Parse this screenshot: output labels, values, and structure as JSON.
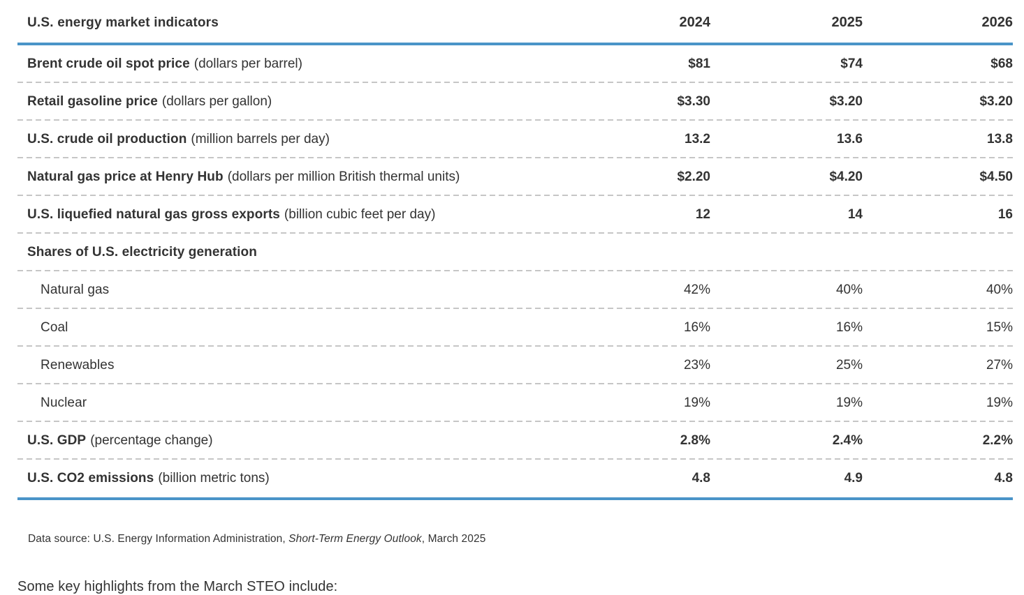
{
  "chart_data": {
    "type": "table",
    "title": "U.S. energy market indicators",
    "columns": [
      "2024",
      "2025",
      "2026"
    ],
    "rows": [
      {
        "label": "Brent crude oil spot price",
        "unit": "(dollars per barrel)",
        "values": [
          "$81",
          "$74",
          "$68"
        ],
        "bold": true,
        "indent": false
      },
      {
        "label": "Retail gasoline price",
        "unit": "(dollars per gallon)",
        "values": [
          "$3.30",
          "$3.20",
          "$3.20"
        ],
        "bold": true,
        "indent": false
      },
      {
        "label": "U.S. crude oil production",
        "unit": "(million barrels per day)",
        "values": [
          "13.2",
          "13.6",
          "13.8"
        ],
        "bold": true,
        "indent": false
      },
      {
        "label": "Natural gas price at Henry Hub",
        "unit": "(dollars per million British thermal units)",
        "values": [
          "$2.20",
          "$4.20",
          "$4.50"
        ],
        "bold": true,
        "indent": false
      },
      {
        "label": "U.S. liquefied natural gas gross exports",
        "unit": "(billion cubic feet per day)",
        "values": [
          "12",
          "14",
          "16"
        ],
        "bold": true,
        "indent": false
      },
      {
        "label": "Shares of U.S. electricity generation",
        "unit": "",
        "values": [
          "",
          "",
          ""
        ],
        "bold": true,
        "indent": false
      },
      {
        "label": "Natural gas",
        "unit": "",
        "values": [
          "42%",
          "40%",
          "40%"
        ],
        "bold": false,
        "indent": true
      },
      {
        "label": "Coal",
        "unit": "",
        "values": [
          "16%",
          "16%",
          "15%"
        ],
        "bold": false,
        "indent": true
      },
      {
        "label": "Renewables",
        "unit": "",
        "values": [
          "23%",
          "25%",
          "27%"
        ],
        "bold": false,
        "indent": true
      },
      {
        "label": "Nuclear",
        "unit": "",
        "values": [
          "19%",
          "19%",
          "19%"
        ],
        "bold": false,
        "indent": true
      },
      {
        "label": "U.S. GDP",
        "unit": "(percentage change)",
        "values": [
          "2.8%",
          "2.4%",
          "2.2%"
        ],
        "bold": true,
        "indent": false
      },
      {
        "label": "U.S. CO2 emissions",
        "unit": "(billion metric tons)",
        "values": [
          "4.8",
          "4.9",
          "4.8"
        ],
        "bold": true,
        "indent": false
      }
    ]
  },
  "source_note": {
    "prefix": "Data source: U.S. Energy Information Administration, ",
    "italic": "Short-Term Energy Outlook",
    "suffix": ", March 2025"
  },
  "body_text": "Some key highlights from the March STEO include:",
  "colors": {
    "accent_blue": "#4a94c8",
    "text": "#333333",
    "divider_gray": "#c6c6c6"
  }
}
